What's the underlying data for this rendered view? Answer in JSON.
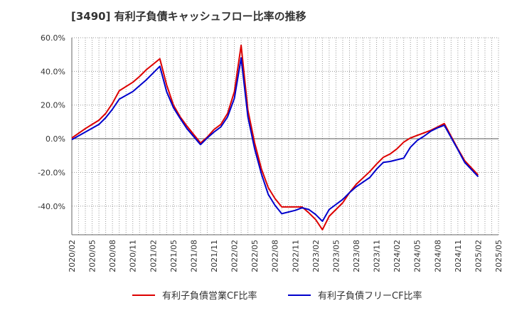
{
  "chart_data": {
    "type": "line",
    "title": "[3490]  有利子負債キャッシュフロー比率の推移",
    "xlabel": "",
    "ylabel": "",
    "x_ticks": [
      "2020/02",
      "2020/05",
      "2020/08",
      "2020/11",
      "2021/02",
      "2021/05",
      "2021/08",
      "2021/11",
      "2022/02",
      "2022/05",
      "2022/08",
      "2022/11",
      "2023/02",
      "2023/05",
      "2023/08",
      "2023/11",
      "2024/02",
      "2024/05",
      "2024/08",
      "2024/11",
      "2025/02",
      "2025/05"
    ],
    "y_ticks": [
      "60.0%",
      "40.0%",
      "20.0%",
      "0.0%",
      "-20.0%",
      "-40.0%"
    ],
    "y_tick_values": [
      60,
      40,
      20,
      0,
      -20,
      -40
    ],
    "ylim": [
      -57,
      60
    ],
    "xlim": [
      "2020/02",
      "2025/05"
    ],
    "grid": true,
    "legend_position": "bottom",
    "series": [
      {
        "name": "有利子負債営業CF比率",
        "color": "#dd0000",
        "points": [
          [
            "2020/02",
            0.5
          ],
          [
            "2020/04",
            6
          ],
          [
            "2020/06",
            11
          ],
          [
            "2020/07",
            15
          ],
          [
            "2020/08",
            21
          ],
          [
            "2020/09",
            28.5
          ],
          [
            "2020/11",
            33.5
          ],
          [
            "2020/12",
            37
          ],
          [
            "2021/01",
            41
          ],
          [
            "2021/03",
            47.5
          ],
          [
            "2021/04",
            32
          ],
          [
            "2021/05",
            20
          ],
          [
            "2021/06",
            13
          ],
          [
            "2021/07",
            7.5
          ],
          [
            "2021/09",
            -2.5
          ],
          [
            "2021/10",
            1
          ],
          [
            "2021/11",
            5.5
          ],
          [
            "2021/12",
            8.5
          ],
          [
            "2022/01",
            15
          ],
          [
            "2022/02",
            28
          ],
          [
            "2022/03",
            55.5
          ],
          [
            "2022/04",
            17
          ],
          [
            "2022/05",
            -2.5
          ],
          [
            "2022/06",
            -18
          ],
          [
            "2022/07",
            -29
          ],
          [
            "2022/08",
            -35.5
          ],
          [
            "2022/09",
            -40.5
          ],
          [
            "2022/11",
            -40.5
          ],
          [
            "2022/12",
            -40.5
          ],
          [
            "2023/01",
            -44
          ],
          [
            "2023/02",
            -48
          ],
          [
            "2023/03",
            -54
          ],
          [
            "2023/04",
            -46
          ],
          [
            "2023/06",
            -38
          ],
          [
            "2023/07",
            -32
          ],
          [
            "2023/08",
            -27
          ],
          [
            "2023/10",
            -19.5
          ],
          [
            "2023/11",
            -15
          ],
          [
            "2023/12",
            -11
          ],
          [
            "2024/01",
            -9
          ],
          [
            "2024/02",
            -6
          ],
          [
            "2024/03",
            -2
          ],
          [
            "2024/04",
            0.5
          ],
          [
            "2024/05",
            2
          ],
          [
            "2024/06",
            3.5
          ],
          [
            "2024/07",
            5
          ],
          [
            "2024/08",
            7
          ],
          [
            "2024/09",
            9
          ],
          [
            "2024/11",
            -6
          ],
          [
            "2024/12",
            -13
          ],
          [
            "2025/02",
            -21.5
          ]
        ]
      },
      {
        "name": "有利子負債フリーCF比率",
        "color": "#0000cc",
        "points": [
          [
            "2020/02",
            -0.5
          ],
          [
            "2020/04",
            4
          ],
          [
            "2020/06",
            8.5
          ],
          [
            "2020/07",
            12.5
          ],
          [
            "2020/08",
            17.5
          ],
          [
            "2020/09",
            23.5
          ],
          [
            "2020/11",
            28
          ],
          [
            "2020/12",
            31.5
          ],
          [
            "2021/01",
            35
          ],
          [
            "2021/03",
            43
          ],
          [
            "2021/04",
            28
          ],
          [
            "2021/05",
            18.5
          ],
          [
            "2021/06",
            12
          ],
          [
            "2021/07",
            6
          ],
          [
            "2021/09",
            -3.5
          ],
          [
            "2021/10",
            0.5
          ],
          [
            "2021/11",
            4
          ],
          [
            "2021/12",
            7
          ],
          [
            "2022/01",
            13
          ],
          [
            "2022/02",
            24
          ],
          [
            "2022/03",
            48
          ],
          [
            "2022/04",
            13
          ],
          [
            "2022/05",
            -6
          ],
          [
            "2022/06",
            -21
          ],
          [
            "2022/07",
            -33
          ],
          [
            "2022/08",
            -39.5
          ],
          [
            "2022/09",
            -44.5
          ],
          [
            "2022/11",
            -42.5
          ],
          [
            "2022/12",
            -41
          ],
          [
            "2023/01",
            -42
          ],
          [
            "2023/02",
            -45
          ],
          [
            "2023/03",
            -49
          ],
          [
            "2023/04",
            -42
          ],
          [
            "2023/06",
            -36
          ],
          [
            "2023/07",
            -32
          ],
          [
            "2023/08",
            -28.5
          ],
          [
            "2023/10",
            -23
          ],
          [
            "2023/11",
            -18
          ],
          [
            "2023/12",
            -14
          ],
          [
            "2024/01",
            -13.5
          ],
          [
            "2024/02",
            -12.5
          ],
          [
            "2024/03",
            -11.5
          ],
          [
            "2024/04",
            -5
          ],
          [
            "2024/05",
            -1
          ],
          [
            "2024/06",
            1.5
          ],
          [
            "2024/07",
            4.5
          ],
          [
            "2024/08",
            6.5
          ],
          [
            "2024/09",
            8
          ],
          [
            "2024/11",
            -6.5
          ],
          [
            "2024/12",
            -14
          ],
          [
            "2025/02",
            -22.5
          ]
        ]
      }
    ]
  }
}
